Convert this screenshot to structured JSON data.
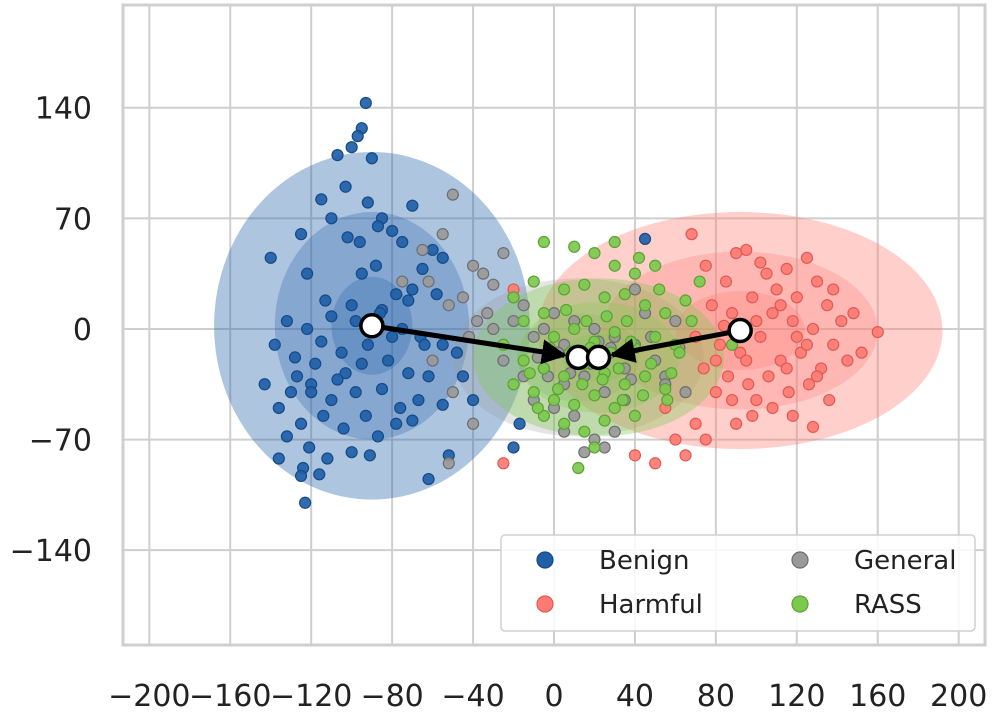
{
  "chart_data": {
    "type": "scatter",
    "title": "",
    "xlabel": "",
    "ylabel": "",
    "xlim": [
      -213,
      213
    ],
    "ylim": [
      -200,
      205
    ],
    "x_ticks": [
      -200,
      -160,
      -120,
      -80,
      -40,
      0,
      40,
      80,
      120,
      160,
      200
    ],
    "x_tick_labels": [
      "−200",
      "−160",
      "−120",
      "−80",
      "−40",
      "0",
      "40",
      "80",
      "120",
      "160",
      "200"
    ],
    "y_ticks": [
      140,
      70,
      0,
      -70,
      -140
    ],
    "y_tick_labels": [
      "140",
      "70",
      "0",
      "−70",
      "−140"
    ],
    "grid": true,
    "legend_position": "lower-right",
    "legend": [
      {
        "label": "Benign",
        "color": "#1f5fa8",
        "series": "Benign"
      },
      {
        "label": "General",
        "color": "#999999",
        "series": "General"
      },
      {
        "label": "Harmful",
        "color": "#ff7b73",
        "series": "Harmful"
      },
      {
        "label": "RASS",
        "color": "#7dc94e",
        "series": "RASS"
      }
    ],
    "series": [
      {
        "name": "Benign",
        "color": "#1f5fa8",
        "edge": "#174a84",
        "centroid": [
          -90,
          2
        ],
        "ellipse_radii": [
          [
            20,
            31
          ],
          [
            48,
            72
          ],
          [
            78,
            110
          ]
        ],
        "ellipse_opacity": [
          0.28,
          0.28,
          0.36
        ],
        "points": [
          [
            -93,
            143
          ],
          [
            -95,
            127
          ],
          [
            -97,
            122
          ],
          [
            -90,
            108
          ],
          [
            -107,
            110
          ],
          [
            -100,
            115
          ],
          [
            -115,
            82
          ],
          [
            -103,
            90
          ],
          [
            -92,
            80
          ],
          [
            -85,
            70
          ],
          [
            -70,
            78
          ],
          [
            -110,
            70
          ],
          [
            -80,
            62
          ],
          [
            -87,
            65
          ],
          [
            -102,
            58
          ],
          [
            -125,
            60
          ],
          [
            -75,
            55
          ],
          [
            -96,
            55
          ],
          [
            -60,
            50
          ],
          [
            -140,
            45
          ],
          [
            -122,
            35
          ],
          [
            -55,
            45
          ],
          [
            -95,
            35
          ],
          [
            -88,
            40
          ],
          [
            -65,
            38
          ],
          [
            -70,
            25
          ],
          [
            -78,
            22
          ],
          [
            -113,
            18
          ],
          [
            -100,
            15
          ],
          [
            -85,
            12
          ],
          [
            -72,
            18
          ],
          [
            -58,
            22
          ],
          [
            -132,
            5
          ],
          [
            -122,
            0
          ],
          [
            -110,
            8
          ],
          [
            -98,
            5
          ],
          [
            -86,
            10
          ],
          [
            -75,
            0
          ],
          [
            -66,
            -5
          ],
          [
            -55,
            -10
          ],
          [
            -48,
            -15
          ],
          [
            -138,
            -10
          ],
          [
            -128,
            -18
          ],
          [
            -118,
            -22
          ],
          [
            -105,
            -15
          ],
          [
            -95,
            -22
          ],
          [
            -82,
            -20
          ],
          [
            -72,
            -28
          ],
          [
            -62,
            -30
          ],
          [
            -143,
            -35
          ],
          [
            -130,
            -40
          ],
          [
            -120,
            -35
          ],
          [
            -110,
            -45
          ],
          [
            -98,
            -40
          ],
          [
            -85,
            -38
          ],
          [
            -76,
            -50
          ],
          [
            -67,
            -45
          ],
          [
            -55,
            -48
          ],
          [
            -136,
            -50
          ],
          [
            -125,
            -60
          ],
          [
            -114,
            -55
          ],
          [
            -104,
            -63
          ],
          [
            -93,
            -55
          ],
          [
            -87,
            -68
          ],
          [
            -78,
            -60
          ],
          [
            -70,
            -58
          ],
          [
            -132,
            -68
          ],
          [
            -121,
            -75
          ],
          [
            -112,
            -82
          ],
          [
            -100,
            -78
          ],
          [
            -91,
            -80
          ],
          [
            -136,
            -82
          ],
          [
            -124,
            -88
          ],
          [
            -116,
            -92
          ],
          [
            -40,
            -45
          ],
          [
            -45,
            -30
          ],
          [
            -52,
            -80
          ],
          [
            -62,
            -95
          ],
          [
            -123,
            -110
          ],
          [
            -20,
            -75
          ],
          [
            -17,
            -60
          ],
          [
            -120,
            -40
          ],
          [
            -92,
            -10
          ],
          [
            -103,
            -28
          ],
          [
            -115,
            -8
          ],
          [
            -80,
            -5
          ],
          [
            -127,
            -30
          ],
          [
            -64,
            -10
          ],
          [
            -107,
            -32
          ],
          [
            45,
            57
          ],
          [
            -125,
            -93
          ]
        ]
      },
      {
        "name": "General",
        "color": "#999999",
        "edge": "#6e6e6e",
        "centroid": [
          12,
          -18
        ],
        "ellipse_radii": [
          [
            30,
            28
          ],
          [
            62,
            50
          ]
        ],
        "ellipse_opacity": [
          0.25,
          0.25
        ],
        "points": [
          [
            -50,
            85
          ],
          [
            -55,
            60
          ],
          [
            -62,
            30
          ],
          [
            -40,
            40
          ],
          [
            -35,
            35
          ],
          [
            -30,
            28
          ],
          [
            -25,
            48
          ],
          [
            -20,
            20
          ],
          [
            -45,
            20
          ],
          [
            -52,
            15
          ],
          [
            -38,
            5
          ],
          [
            -30,
            0
          ],
          [
            -20,
            5
          ],
          [
            -15,
            15
          ],
          [
            -10,
            -5
          ],
          [
            -5,
            0
          ],
          [
            0,
            10
          ],
          [
            5,
            -10
          ],
          [
            10,
            5
          ],
          [
            15,
            -15
          ],
          [
            20,
            0
          ],
          [
            25,
            -20
          ],
          [
            30,
            -5
          ],
          [
            35,
            -25
          ],
          [
            40,
            -10
          ],
          [
            45,
            10
          ],
          [
            50,
            -20
          ],
          [
            55,
            -30
          ],
          [
            60,
            5
          ],
          [
            -25,
            -20
          ],
          [
            -15,
            -30
          ],
          [
            -5,
            -25
          ],
          [
            5,
            -35
          ],
          [
            15,
            -30
          ],
          [
            25,
            -40
          ],
          [
            35,
            -45
          ],
          [
            -50,
            -40
          ],
          [
            -60,
            -20
          ],
          [
            -40,
            -60
          ],
          [
            10,
            -55
          ],
          [
            20,
            -70
          ],
          [
            30,
            -65
          ],
          [
            5,
            -65
          ],
          [
            0,
            -50
          ],
          [
            -10,
            -45
          ],
          [
            12,
            -18
          ],
          [
            18,
            -22
          ],
          [
            8,
            -28
          ],
          [
            22,
            -8
          ],
          [
            2,
            -15
          ],
          [
            -52,
            -85
          ],
          [
            -65,
            50
          ],
          [
            -75,
            30
          ],
          [
            40,
            25
          ],
          [
            55,
            -35
          ],
          [
            65,
            -40
          ],
          [
            15,
            -78
          ],
          [
            25,
            -75
          ],
          [
            -3,
            -30
          ],
          [
            28,
            -12
          ],
          [
            38,
            -32
          ],
          [
            -8,
            -18
          ],
          [
            48,
            -5
          ],
          [
            -33,
            10
          ],
          [
            -42,
            -5
          ],
          [
            62,
            -12
          ]
        ]
      },
      {
        "name": "Harmful",
        "color": "#ff7b73",
        "edge": "#e05a52",
        "centroid": [
          92,
          -1
        ],
        "ellipse_radii": [
          [
            32,
            25
          ],
          [
            68,
            50
          ],
          [
            100,
            75
          ]
        ],
        "ellipse_opacity": [
          0.28,
          0.28,
          0.36
        ],
        "points": [
          [
            68,
            60
          ],
          [
            95,
            50
          ],
          [
            102,
            42
          ],
          [
            115,
            38
          ],
          [
            125,
            45
          ],
          [
            130,
            30
          ],
          [
            75,
            40
          ],
          [
            85,
            30
          ],
          [
            110,
            25
          ],
          [
            120,
            20
          ],
          [
            135,
            15
          ],
          [
            142,
            5
          ],
          [
            160,
            -2
          ],
          [
            78,
            15
          ],
          [
            88,
            10
          ],
          [
            98,
            20
          ],
          [
            108,
            10
          ],
          [
            118,
            5
          ],
          [
            128,
            0
          ],
          [
            138,
            -10
          ],
          [
            70,
            -5
          ],
          [
            82,
            -10
          ],
          [
            92,
            -15
          ],
          [
            102,
            -5
          ],
          [
            112,
            -20
          ],
          [
            122,
            -15
          ],
          [
            132,
            -25
          ],
          [
            145,
            -20
          ],
          [
            74,
            -25
          ],
          [
            86,
            -30
          ],
          [
            96,
            -35
          ],
          [
            106,
            -30
          ],
          [
            116,
            -40
          ],
          [
            126,
            -35
          ],
          [
            136,
            -45
          ],
          [
            88,
            -45
          ],
          [
            98,
            -55
          ],
          [
            108,
            -50
          ],
          [
            118,
            -55
          ],
          [
            128,
            -62
          ],
          [
            60,
            -70
          ],
          [
            70,
            -60
          ],
          [
            55,
            -50
          ],
          [
            65,
            -80
          ],
          [
            80,
            -40
          ],
          [
            90,
            -60
          ],
          [
            100,
            -45
          ],
          [
            115,
            -25
          ],
          [
            125,
            -10
          ],
          [
            105,
            35
          ],
          [
            112,
            15
          ],
          [
            95,
            -20
          ],
          [
            84,
            2
          ],
          [
            90,
            48
          ],
          [
            120,
            -5
          ],
          [
            148,
            10
          ],
          [
            152,
            -15
          ],
          [
            40,
            -80
          ],
          [
            50,
            -85
          ],
          [
            75,
            -70
          ],
          [
            -25,
            -85
          ],
          [
            -20,
            25
          ],
          [
            130,
            -30
          ],
          [
            138,
            25
          ],
          [
            100,
            5
          ],
          [
            80,
            -20
          ]
        ]
      },
      {
        "name": "RASS",
        "color": "#7dc94e",
        "edge": "#5aa332",
        "centroid": [
          22,
          -18
        ],
        "ellipse_radii": [
          [
            18,
            15
          ],
          [
            40,
            35
          ],
          [
            62,
            50
          ]
        ],
        "ellipse_opacity": [
          0.25,
          0.28,
          0.36
        ],
        "points": [
          [
            -5,
            55
          ],
          [
            10,
            52
          ],
          [
            20,
            48
          ],
          [
            30,
            40
          ],
          [
            40,
            35
          ],
          [
            -10,
            30
          ],
          [
            5,
            25
          ],
          [
            15,
            28
          ],
          [
            25,
            20
          ],
          [
            35,
            22
          ],
          [
            45,
            15
          ],
          [
            55,
            10
          ],
          [
            65,
            18
          ],
          [
            -20,
            20
          ],
          [
            -15,
            5
          ],
          [
            -5,
            10
          ],
          [
            0,
            -5
          ],
          [
            10,
            0
          ],
          [
            20,
            -8
          ],
          [
            30,
            -2
          ],
          [
            40,
            -12
          ],
          [
            50,
            -5
          ],
          [
            60,
            -10
          ],
          [
            -25,
            -10
          ],
          [
            -15,
            -20
          ],
          [
            -5,
            -25
          ],
          [
            5,
            -30
          ],
          [
            15,
            -22
          ],
          [
            25,
            -28
          ],
          [
            35,
            -35
          ],
          [
            45,
            -30
          ],
          [
            55,
            -38
          ],
          [
            -20,
            -35
          ],
          [
            -10,
            -40
          ],
          [
            0,
            -45
          ],
          [
            10,
            -48
          ],
          [
            20,
            -42
          ],
          [
            30,
            -50
          ],
          [
            40,
            -55
          ],
          [
            -5,
            -55
          ],
          [
            5,
            -60
          ],
          [
            15,
            -65
          ],
          [
            25,
            -58
          ],
          [
            12,
            -88
          ],
          [
            18,
            -12
          ],
          [
            22,
            -18
          ],
          [
            28,
            -15
          ],
          [
            8,
            -15
          ],
          [
            32,
            -25
          ],
          [
            38,
            -8
          ],
          [
            -2,
            -12
          ],
          [
            48,
            -22
          ],
          [
            58,
            -28
          ],
          [
            62,
            -15
          ],
          [
            68,
            5
          ],
          [
            52,
            25
          ],
          [
            42,
            45
          ],
          [
            30,
            55
          ],
          [
            14,
            -35
          ],
          [
            24,
            -32
          ],
          [
            34,
            -45
          ],
          [
            2,
            -38
          ],
          [
            -12,
            -28
          ],
          [
            44,
            -42
          ],
          [
            16,
            5
          ],
          [
            26,
            8
          ],
          [
            6,
            12
          ],
          [
            36,
            5
          ],
          [
            88,
            -10
          ],
          [
            72,
            30
          ],
          [
            50,
            40
          ],
          [
            -8,
            -50
          ],
          [
            20,
            -75
          ],
          [
            56,
            -45
          ]
        ]
      }
    ]
  }
}
